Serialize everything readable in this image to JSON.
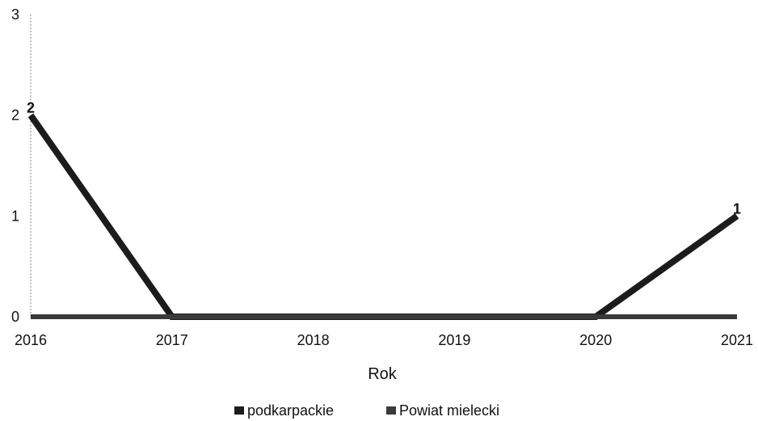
{
  "chart_data": {
    "type": "line",
    "title": "",
    "x": [
      "2016",
      "2017",
      "2018",
      "2019",
      "2020",
      "2021"
    ],
    "xlabel": "Rok",
    "ylabel": "",
    "ylim": [
      0,
      3
    ],
    "yticks": [
      0,
      1,
      2,
      3
    ],
    "grid": false,
    "legend_position": "bottom",
    "series": [
      {
        "name": "podkarpackie",
        "values": [
          2,
          0,
          0,
          0,
          0,
          1
        ],
        "color": "#1c1c1c",
        "data_labels": [
          "2",
          "",
          "",
          "",
          "",
          "1"
        ]
      },
      {
        "name": "Powiat mielecki",
        "values": [
          0,
          0,
          0,
          0,
          0,
          0
        ],
        "color": "#3a3a3a",
        "data_labels": [
          "",
          "",
          "",
          "",
          "",
          ""
        ]
      }
    ]
  }
}
